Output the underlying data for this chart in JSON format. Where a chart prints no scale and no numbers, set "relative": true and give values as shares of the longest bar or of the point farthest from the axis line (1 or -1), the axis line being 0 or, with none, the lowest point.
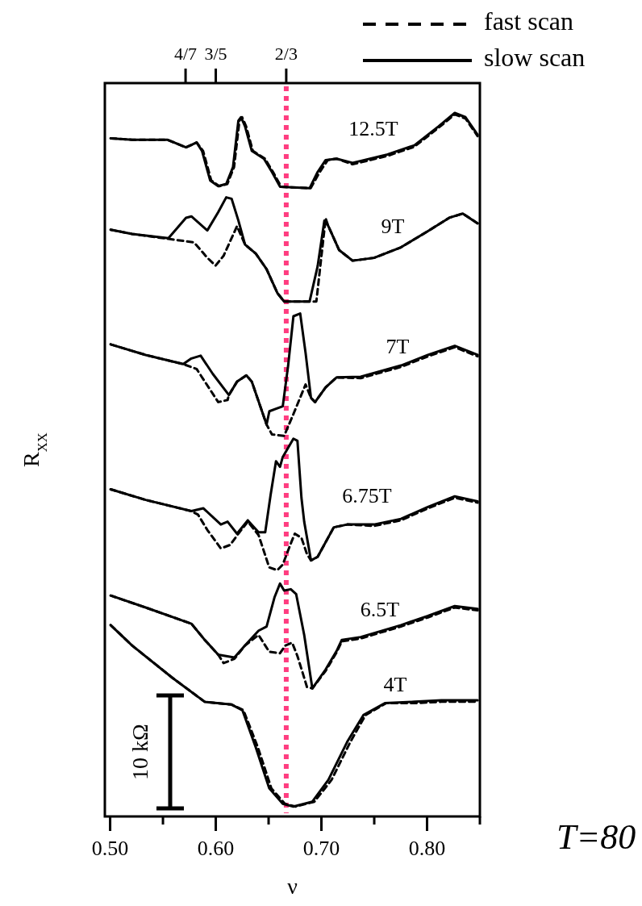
{
  "chart_data": {
    "type": "line",
    "relative": true,
    "xlabel": "ν",
    "ylabel": "R$_{XX}$",
    "xlim": [
      0.495,
      0.85
    ],
    "xticks": [
      {
        "value": 0.5,
        "label": "0.50"
      },
      {
        "value": 0.55,
        "label": null
      },
      {
        "value": 0.6,
        "label": "0.60"
      },
      {
        "value": 0.65,
        "label": null
      },
      {
        "value": 0.7,
        "label": "0.70"
      },
      {
        "value": 0.75,
        "label": null
      },
      {
        "value": 0.8,
        "label": "0.80"
      },
      {
        "value": 0.85,
        "label": null
      }
    ],
    "x2lim": [
      0.495,
      0.85
    ],
    "x2ticks": [
      {
        "value": 0.5714,
        "label": "4/7"
      },
      {
        "value": 0.6,
        "label": "3/5"
      },
      {
        "value": 0.6667,
        "label": "2/3"
      }
    ],
    "legend": "top right",
    "grid": false,
    "ref_lines": [
      {
        "axis": "x",
        "value": 0.6667,
        "color": "#ff3d80",
        "line_style": "dotted"
      }
    ],
    "annotations": [
      "12.5T",
      "9T",
      "7T",
      "6.75T",
      "6.5T",
      "4T",
      "10 kΩ",
      "T=80"
    ],
    "series": [
      {
        "name": "fast scan",
        "color": "#000000",
        "line_style": "dashed",
        "x": [
          0.5005,
          0.5208,
          0.554,
          0.5718,
          0.5819,
          0.588,
          0.5957,
          0.6033,
          0.6109,
          0.6173,
          0.6224,
          0.6249,
          0.6287,
          0.6351,
          0.6466,
          0.6542,
          0.6619,
          0.6898,
          0.6984,
          0.706,
          0.7143,
          0.7295,
          0.7626,
          0.788,
          0.8109,
          0.8262,
          0.8364,
          0.8479
        ],
        "values": [
          0.964,
          0.962,
          0.962,
          0.951,
          0.958,
          0.946,
          0.904,
          0.896,
          0.899,
          0.923,
          0.989,
          0.994,
          0.981,
          0.946,
          0.935,
          0.916,
          0.895,
          0.893,
          0.916,
          0.933,
          0.935,
          0.927,
          0.939,
          0.952,
          0.979,
          0.998,
          0.992,
          0.967
        ]
      },
      {
        "name": "slow scan",
        "color": "#000000",
        "line_style": "solid",
        "x": [
          0.5005,
          0.5208,
          0.554,
          0.5718,
          0.5819,
          0.587,
          0.5947,
          0.6023,
          0.6099,
          0.6163,
          0.6214,
          0.6239,
          0.6277,
          0.6341,
          0.6456,
          0.6532,
          0.6609,
          0.6888,
          0.6964,
          0.704,
          0.7143,
          0.7295,
          0.7626,
          0.788,
          0.8109,
          0.8262,
          0.8364,
          0.8479
        ],
        "values": [
          0.964,
          0.962,
          0.962,
          0.951,
          0.958,
          0.946,
          0.904,
          0.896,
          0.899,
          0.923,
          0.989,
          0.994,
          0.981,
          0.946,
          0.935,
          0.916,
          0.895,
          0.893,
          0.916,
          0.933,
          0.935,
          0.929,
          0.941,
          0.954,
          0.981,
          1.0,
          0.994,
          0.969
        ]
      },
      {
        "color": "#000000",
        "line_style": "solid",
        "x": [
          0.5005,
          0.5208,
          0.5552,
          0.5718,
          0.5769,
          0.592,
          0.6023,
          0.6099,
          0.615,
          0.6214,
          0.6277,
          0.6379,
          0.6481,
          0.6583,
          0.6647,
          0.6888,
          0.6964,
          0.7028,
          0.7066,
          0.7168,
          0.7295,
          0.7498,
          0.7753,
          0.8008,
          0.821,
          0.8338,
          0.8479
        ],
        "values": [
          0.834,
          0.828,
          0.822,
          0.851,
          0.853,
          0.833,
          0.859,
          0.88,
          0.878,
          0.847,
          0.813,
          0.8,
          0.778,
          0.744,
          0.732,
          0.732,
          0.782,
          0.847,
          0.839,
          0.805,
          0.79,
          0.794,
          0.809,
          0.832,
          0.851,
          0.857,
          0.843
        ]
      },
      {
        "color": "#000000",
        "line_style": "dashed",
        "x": [
          0.5005,
          0.5208,
          0.5552,
          0.5794,
          0.5921,
          0.5998,
          0.6074,
          0.6201,
          0.6277,
          0.6379,
          0.6481,
          0.6583,
          0.6647,
          0.6888,
          0.6952,
          0.704,
          0.7066,
          0.7168,
          0.7295,
          0.7498,
          0.7753,
          0.8008,
          0.821,
          0.8338,
          0.8479
        ],
        "values": [
          0.834,
          0.828,
          0.821,
          0.816,
          0.794,
          0.783,
          0.797,
          0.839,
          0.813,
          0.8,
          0.778,
          0.744,
          0.732,
          0.732,
          0.732,
          0.85,
          0.839,
          0.805,
          0.79,
          0.794,
          0.809,
          0.832,
          0.851,
          0.857,
          0.843
        ]
      },
      {
        "color": "#000000",
        "line_style": "solid",
        "x": [
          0.5005,
          0.5336,
          0.5692,
          0.5769,
          0.5857,
          0.5972,
          0.6124,
          0.6201,
          0.629,
          0.6341,
          0.6481,
          0.6507,
          0.6634,
          0.6685,
          0.6735,
          0.6799,
          0.685,
          0.6901,
          0.694,
          0.704,
          0.7143,
          0.7372,
          0.7753,
          0.8008,
          0.8262,
          0.8479
        ],
        "values": [
          0.671,
          0.656,
          0.643,
          0.651,
          0.655,
          0.629,
          0.599,
          0.618,
          0.627,
          0.618,
          0.557,
          0.576,
          0.583,
          0.641,
          0.711,
          0.715,
          0.659,
          0.595,
          0.589,
          0.61,
          0.624,
          0.625,
          0.641,
          0.656,
          0.669,
          0.656
        ]
      },
      {
        "color": "#000000",
        "line_style": "dashed",
        "x": [
          0.5005,
          0.5336,
          0.5692,
          0.5819,
          0.6023,
          0.6112,
          0.6124,
          0.6201,
          0.629,
          0.6341,
          0.6481,
          0.6532,
          0.6647,
          0.6735,
          0.685,
          0.6901,
          0.694,
          0.704,
          0.7143,
          0.7372,
          0.7753,
          0.8008,
          0.8262,
          0.8479
        ],
        "values": [
          0.671,
          0.656,
          0.643,
          0.636,
          0.589,
          0.592,
          0.599,
          0.618,
          0.627,
          0.618,
          0.557,
          0.543,
          0.541,
          0.572,
          0.614,
          0.595,
          0.589,
          0.61,
          0.624,
          0.623,
          0.639,
          0.654,
          0.667,
          0.654
        ]
      },
      {
        "color": "#000000",
        "line_style": "solid",
        "x": [
          0.5005,
          0.5336,
          0.5769,
          0.5883,
          0.6048,
          0.6112,
          0.6201,
          0.6303,
          0.6405,
          0.6468,
          0.6519,
          0.657,
          0.6608,
          0.6634,
          0.6735,
          0.6773,
          0.6811,
          0.6837,
          0.6901,
          0.6964,
          0.7117,
          0.7244,
          0.7498,
          0.7753,
          0.8008,
          0.8262,
          0.8479
        ],
        "values": [
          0.465,
          0.45,
          0.434,
          0.438,
          0.415,
          0.419,
          0.402,
          0.421,
          0.404,
          0.404,
          0.457,
          0.505,
          0.497,
          0.511,
          0.537,
          0.534,
          0.453,
          0.419,
          0.364,
          0.369,
          0.411,
          0.415,
          0.415,
          0.423,
          0.44,
          0.455,
          0.448
        ]
      },
      {
        "color": "#000000",
        "line_style": "dashed",
        "x": [
          0.5005,
          0.5336,
          0.5769,
          0.5832,
          0.5921,
          0.6048,
          0.6137,
          0.6214,
          0.6303,
          0.6405,
          0.6506,
          0.6582,
          0.6634,
          0.671,
          0.6748,
          0.6811,
          0.6863,
          0.6901,
          0.6964,
          0.7117,
          0.7244,
          0.7498,
          0.7753,
          0.8008,
          0.8262,
          0.8479
        ],
        "values": [
          0.465,
          0.45,
          0.434,
          0.429,
          0.407,
          0.381,
          0.386,
          0.402,
          0.419,
          0.4,
          0.354,
          0.35,
          0.358,
          0.388,
          0.402,
          0.396,
          0.373,
          0.364,
          0.369,
          0.411,
          0.415,
          0.413,
          0.421,
          0.438,
          0.453,
          0.446
        ]
      },
      {
        "color": "#000000",
        "line_style": "solid",
        "x": [
          0.5005,
          0.5336,
          0.5769,
          0.5895,
          0.6023,
          0.6176,
          0.6277,
          0.6405,
          0.6481,
          0.6557,
          0.6608,
          0.6647,
          0.671,
          0.6761,
          0.6837,
          0.6914,
          0.704,
          0.7143,
          0.7193,
          0.7372,
          0.7753,
          0.8008,
          0.8262,
          0.8479
        ],
        "values": [
          0.314,
          0.297,
          0.274,
          0.251,
          0.23,
          0.226,
          0.243,
          0.264,
          0.27,
          0.312,
          0.331,
          0.321,
          0.323,
          0.316,
          0.258,
          0.182,
          0.209,
          0.235,
          0.251,
          0.255,
          0.272,
          0.285,
          0.299,
          0.295
        ]
      },
      {
        "color": "#000000",
        "line_style": "dashed",
        "x": [
          0.5005,
          0.5336,
          0.5769,
          0.5895,
          0.6023,
          0.6074,
          0.6176,
          0.6277,
          0.6405,
          0.6506,
          0.6608,
          0.6659,
          0.6723,
          0.6773,
          0.6837,
          0.6863,
          0.6914,
          0.704,
          0.7143,
          0.7193,
          0.7372,
          0.7753,
          0.8008,
          0.8262,
          0.8479
        ],
        "values": [
          0.314,
          0.297,
          0.274,
          0.251,
          0.23,
          0.218,
          0.224,
          0.243,
          0.258,
          0.234,
          0.232,
          0.243,
          0.247,
          0.228,
          0.197,
          0.184,
          0.182,
          0.207,
          0.233,
          0.249,
          0.253,
          0.27,
          0.283,
          0.297,
          0.293
        ]
      },
      {
        "color": "#000000",
        "line_style": "solid",
        "x": [
          0.5005,
          0.5208,
          0.559,
          0.5895,
          0.615,
          0.6252,
          0.6379,
          0.6506,
          0.6634,
          0.6735,
          0.6914,
          0.7066,
          0.7244,
          0.7397,
          0.7601,
          0.788,
          0.8135,
          0.8479
        ],
        "values": [
          0.272,
          0.243,
          0.197,
          0.163,
          0.159,
          0.151,
          0.098,
          0.04,
          0.018,
          0.014,
          0.021,
          0.052,
          0.106,
          0.144,
          0.161,
          0.163,
          0.165,
          0.165
        ]
      },
      {
        "color": "#000000",
        "line_style": "dashed",
        "x": [
          0.5005,
          0.5208,
          0.559,
          0.5895,
          0.615,
          0.6262,
          0.6399,
          0.6526,
          0.6654,
          0.6755,
          0.6934,
          0.7096,
          0.7274,
          0.7417,
          0.7611,
          0.788,
          0.8135,
          0.8479
        ],
        "values": [
          0.272,
          0.243,
          0.197,
          0.163,
          0.159,
          0.151,
          0.098,
          0.04,
          0.018,
          0.014,
          0.021,
          0.052,
          0.106,
          0.144,
          0.161,
          0.161,
          0.163,
          0.163
        ]
      }
    ]
  }
}
